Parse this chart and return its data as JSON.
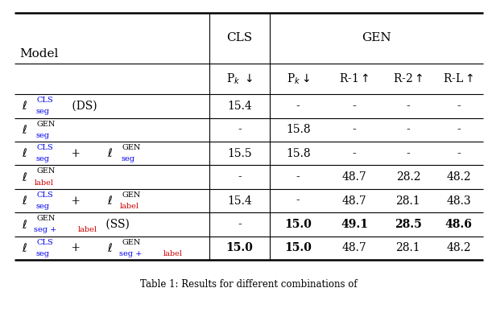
{
  "fig_width": 6.06,
  "fig_height": 4.04,
  "background_color": "#ffffff",
  "rows": [
    {
      "values": [
        "15.4",
        "-",
        "-",
        "-",
        "-"
      ],
      "bold_values": [
        false,
        false,
        false,
        false,
        false
      ]
    },
    {
      "values": [
        "-",
        "15.8",
        "-",
        "-",
        "-"
      ],
      "bold_values": [
        false,
        false,
        false,
        false,
        false
      ]
    },
    {
      "values": [
        "15.5",
        "15.8",
        "-",
        "-",
        "-"
      ],
      "bold_values": [
        false,
        false,
        false,
        false,
        false
      ]
    },
    {
      "values": [
        "-",
        "-",
        "48.7",
        "28.2",
        "48.2"
      ],
      "bold_values": [
        false,
        false,
        false,
        false,
        false
      ]
    },
    {
      "values": [
        "15.4",
        "-",
        "48.7",
        "28.1",
        "48.3"
      ],
      "bold_values": [
        false,
        false,
        false,
        false,
        false
      ]
    },
    {
      "values": [
        "-",
        "15.0",
        "49.1",
        "28.5",
        "48.6"
      ],
      "bold_values": [
        false,
        true,
        true,
        true,
        true
      ]
    },
    {
      "values": [
        "15.0",
        "15.0",
        "48.7",
        "28.1",
        "48.2"
      ],
      "bold_values": [
        true,
        true,
        false,
        false,
        false
      ]
    }
  ],
  "blue": "#0000ee",
  "red": "#cc0000",
  "black": "#000000"
}
